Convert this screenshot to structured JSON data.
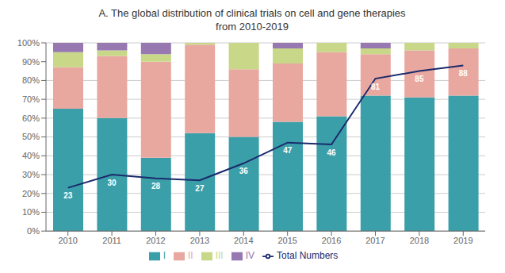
{
  "chart_data": {
    "type": "bar",
    "title": "A. The global distribution of clinical trials on cell and gene therapies\nfrom 2010-2019",
    "categories": [
      "2010",
      "2011",
      "2012",
      "2013",
      "2014",
      "2015",
      "2016",
      "2017",
      "2018",
      "2019"
    ],
    "stacked": true,
    "grid": true,
    "legend": "bottom",
    "ylim": [
      0,
      100
    ],
    "yticks": [
      {
        "value": 0,
        "label": "0%"
      },
      {
        "value": 10,
        "label": "10%"
      },
      {
        "value": 20,
        "label": "20%"
      },
      {
        "value": 30,
        "label": "30%"
      },
      {
        "value": 40,
        "label": "40%"
      },
      {
        "value": 50,
        "label": "50%"
      },
      {
        "value": 60,
        "label": "60%"
      },
      {
        "value": 70,
        "label": "70%"
      },
      {
        "value": 80,
        "label": "80%"
      },
      {
        "value": 90,
        "label": "90%"
      },
      {
        "value": 100,
        "label": "100%"
      }
    ],
    "series": [
      {
        "name": "I",
        "type": "bar",
        "color": "#3a9fa8",
        "values": [
          65,
          60,
          39,
          52,
          50,
          58,
          61,
          72,
          71,
          72
        ]
      },
      {
        "name": "II",
        "type": "bar",
        "color": "#e8a8a0",
        "values": [
          22,
          33,
          51,
          47,
          36,
          31,
          34,
          22,
          25,
          25
        ]
      },
      {
        "name": "III",
        "type": "bar",
        "color": "#c8d888",
        "values": [
          8,
          3,
          4,
          1,
          14,
          8,
          5,
          3,
          4,
          3
        ]
      },
      {
        "name": "IV",
        "type": "bar",
        "color": "#9878b0",
        "values": [
          5,
          4,
          6,
          0,
          0,
          3,
          0,
          3,
          0,
          0
        ]
      },
      {
        "name": "Total Numbers",
        "type": "line",
        "color": "#1a2a6c",
        "data_labels": true,
        "values": [
          23,
          30,
          28,
          27,
          36,
          47,
          46,
          81,
          85,
          88
        ]
      }
    ]
  }
}
